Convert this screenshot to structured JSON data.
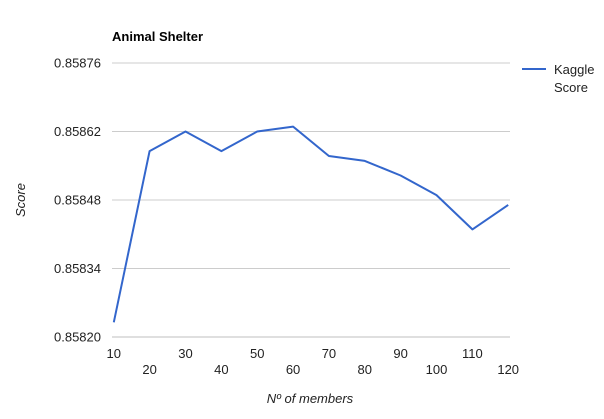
{
  "colors": {
    "series": "#3366cc",
    "grid": "#cccccc",
    "background": "#ffffff"
  },
  "chart_data": {
    "type": "line",
    "title": "Animal Shelter",
    "xlabel": "Nº of members",
    "ylabel": "Score",
    "x": [
      10,
      20,
      30,
      40,
      50,
      60,
      70,
      80,
      90,
      100,
      110,
      120
    ],
    "x_ticks": [
      "10",
      "20",
      "30",
      "40",
      "50",
      "60",
      "70",
      "80",
      "90",
      "100",
      "110",
      "120"
    ],
    "y_ticks": [
      "0.85820",
      "0.85834",
      "0.85848",
      "0.85862",
      "0.85876"
    ],
    "ylim": [
      0.8582,
      0.85876
    ],
    "grid": true,
    "legend_position": "right",
    "series": [
      {
        "name": "Kaggle Score",
        "name_lines": [
          "Kaggle",
          "Score"
        ],
        "values": [
          0.85823,
          0.85858,
          0.85862,
          0.85858,
          0.85862,
          0.85863,
          0.85857,
          0.85856,
          0.85853,
          0.85849,
          0.85842,
          0.85847
        ]
      }
    ]
  }
}
